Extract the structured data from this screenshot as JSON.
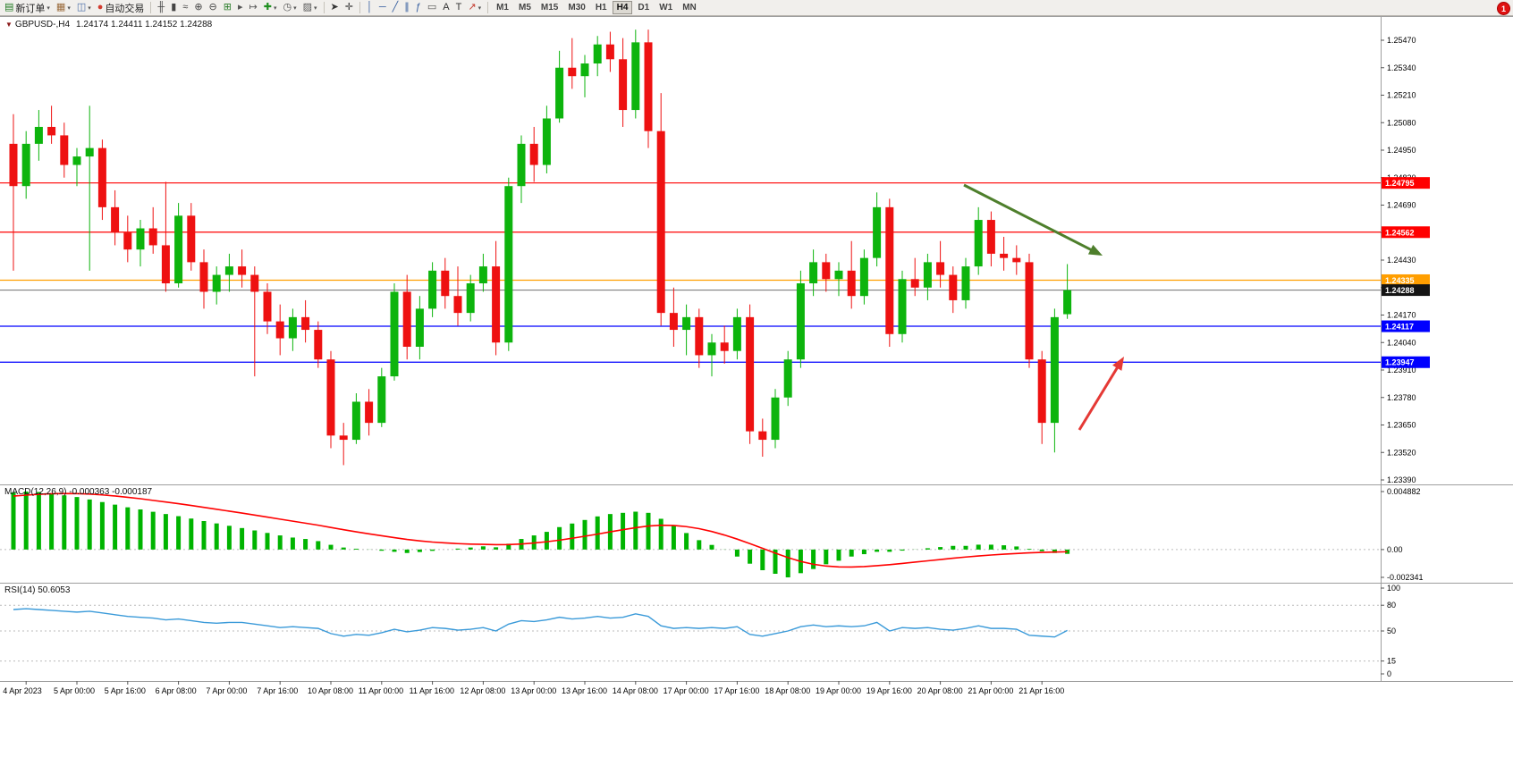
{
  "toolbar": {
    "buttons": [
      {
        "name": "new-order",
        "icon": "new-order-icon",
        "glyph": "▤",
        "label": "新订单",
        "dropdown": true,
        "color": "#1f7a1f"
      },
      {
        "name": "new-chart",
        "icon": "new-chart-icon",
        "glyph": "▦",
        "dropdown": true,
        "color": "#9a6a3a"
      },
      {
        "name": "profiles",
        "icon": "profiles-icon",
        "glyph": "◫",
        "dropdown": true,
        "color": "#4a6da7"
      },
      {
        "name": "auto-trading",
        "icon": "auto-trading-icon",
        "glyph": "●",
        "label": "自动交易",
        "color": "#d23b2f"
      },
      {
        "sep": true
      },
      {
        "name": "bar-chart",
        "icon": "bar-chart-icon",
        "glyph": "╫",
        "color": "#444"
      },
      {
        "name": "candlestick-chart",
        "icon": "candlestick-chart-icon",
        "glyph": "▮",
        "color": "#444"
      },
      {
        "name": "line-chart",
        "icon": "line-chart-icon",
        "glyph": "≈",
        "color": "#444"
      },
      {
        "name": "zoom-in",
        "icon": "zoom-in-icon",
        "glyph": "⊕",
        "color": "#444"
      },
      {
        "name": "zoom-out",
        "icon": "zoom-out-icon",
        "glyph": "⊖",
        "color": "#444"
      },
      {
        "name": "tile-windows",
        "icon": "tile-windows-icon",
        "glyph": "⊞",
        "color": "#2a7d2a"
      },
      {
        "name": "auto-scroll",
        "icon": "auto-scroll-icon",
        "glyph": "▸",
        "color": "#555"
      },
      {
        "name": "chart-shift",
        "icon": "chart-shift-icon",
        "glyph": "↦",
        "color": "#555"
      },
      {
        "name": "indicators",
        "icon": "indicators-icon",
        "glyph": "✚",
        "dropdown": true,
        "color": "#1f8f1f"
      },
      {
        "name": "periods",
        "icon": "clock-icon",
        "glyph": "◷",
        "dropdown": true,
        "color": "#555"
      },
      {
        "name": "templates",
        "icon": "template-icon",
        "glyph": "▨",
        "dropdown": true,
        "color": "#555"
      },
      {
        "sep": true
      },
      {
        "name": "cursor",
        "icon": "cursor-icon",
        "glyph": "➤",
        "color": "#333"
      },
      {
        "name": "crosshair",
        "icon": "crosshair-icon",
        "glyph": "✛",
        "color": "#333"
      },
      {
        "sep": true
      },
      {
        "name": "vertical-line",
        "icon": "vertical-line-icon",
        "glyph": "│",
        "color": "#335c9e"
      },
      {
        "name": "horizontal-line",
        "icon": "horizontal-line-icon",
        "glyph": "─",
        "color": "#335c9e"
      },
      {
        "name": "trendline",
        "icon": "trendline-icon",
        "glyph": "╱",
        "color": "#335c9e"
      },
      {
        "name": "channel",
        "icon": "channel-icon",
        "glyph": "∥",
        "color": "#335c9e"
      },
      {
        "name": "fibonacci",
        "icon": "fibonacci-icon",
        "glyph": "ƒ",
        "color": "#335c9e"
      },
      {
        "name": "shapes",
        "icon": "shapes-icon",
        "glyph": "▭",
        "color": "#555"
      },
      {
        "name": "text",
        "icon": "text-icon",
        "glyph": "A",
        "color": "#333"
      },
      {
        "name": "text-label",
        "icon": "text-label-icon",
        "glyph": "T",
        "color": "#333"
      },
      {
        "name": "arrow-objects",
        "icon": "arrow-objects-icon",
        "glyph": "↗",
        "dropdown": true,
        "color": "#c43b2f"
      },
      {
        "sep": true
      }
    ],
    "timeframes": [
      "M1",
      "M5",
      "M15",
      "M30",
      "H1",
      "H4",
      "D1",
      "W1",
      "MN"
    ],
    "active_timeframe": "H4",
    "alert_badge": "1"
  },
  "chart": {
    "title": "GBPUSD-,H4",
    "ohlc": "1.24174 1.24411 1.24152 1.24288"
  },
  "indicators": {
    "macd_label": "MACD(12,26,9) -0.000363 -0.000187",
    "rsi_label": "RSI(14) 50.6053"
  },
  "chart_data": {
    "type": "candlestick",
    "symbol": "GBPUSD-",
    "timeframe": "H4",
    "colors": {
      "up": "#0db40d",
      "down": "#ee1111",
      "macd_hist": "#00b400",
      "macd_signal": "#ff0000",
      "rsi": "#3a9ad9"
    },
    "y_axis": [
      "1.25470",
      "1.25340",
      "1.25210",
      "1.25080",
      "1.24950",
      "1.24820",
      "1.24690",
      "1.24560",
      "1.24430",
      "1.24300",
      "1.24170",
      "1.24040",
      "1.23910",
      "1.23780",
      "1.23650",
      "1.23520",
      "1.23390"
    ],
    "x_labels": [
      "4 Apr 2023",
      "5 Apr 00:00",
      "5 Apr 16:00",
      "6 Apr 08:00",
      "7 Apr 00:00",
      "7 Apr 16:00",
      "10 Apr 08:00",
      "11 Apr 00:00",
      "11 Apr 16:00",
      "12 Apr 08:00",
      "13 Apr 00:00",
      "13 Apr 16:00",
      "14 Apr 08:00",
      "17 Apr 00:00",
      "17 Apr 16:00",
      "18 Apr 08:00",
      "19 Apr 00:00",
      "19 Apr 16:00",
      "20 Apr 08:00",
      "21 Apr 00:00",
      "21 Apr 16:00"
    ],
    "candles": [
      [
        1.2498,
        1.2512,
        1.2438,
        1.2478
      ],
      [
        1.2478,
        1.2504,
        1.2472,
        1.2498
      ],
      [
        1.2498,
        1.2514,
        1.249,
        1.2506
      ],
      [
        1.2506,
        1.2516,
        1.2498,
        1.2502
      ],
      [
        1.2502,
        1.2508,
        1.2482,
        1.2488
      ],
      [
        1.2488,
        1.2496,
        1.2478,
        1.2492
      ],
      [
        1.2492,
        1.2516,
        1.2438,
        1.2496
      ],
      [
        1.2496,
        1.25,
        1.2462,
        1.2468
      ],
      [
        1.2468,
        1.2476,
        1.245,
        1.2456
      ],
      [
        1.2456,
        1.2464,
        1.2442,
        1.2448
      ],
      [
        1.2448,
        1.2462,
        1.244,
        1.2458
      ],
      [
        1.2458,
        1.2468,
        1.2446,
        1.245
      ],
      [
        1.245,
        1.248,
        1.2428,
        1.2432
      ],
      [
        1.2432,
        1.247,
        1.243,
        1.2464
      ],
      [
        1.2464,
        1.247,
        1.2438,
        1.2442
      ],
      [
        1.2442,
        1.2448,
        1.242,
        1.2428
      ],
      [
        1.2428,
        1.244,
        1.2422,
        1.2436
      ],
      [
        1.2436,
        1.2446,
        1.2428,
        1.244
      ],
      [
        1.244,
        1.2448,
        1.243,
        1.2436
      ],
      [
        1.2436,
        1.244,
        1.2388,
        1.2428
      ],
      [
        1.2428,
        1.2432,
        1.2408,
        1.2414
      ],
      [
        1.2414,
        1.2422,
        1.2398,
        1.2406
      ],
      [
        1.2406,
        1.242,
        1.24,
        1.2416
      ],
      [
        1.2416,
        1.2424,
        1.2404,
        1.241
      ],
      [
        1.241,
        1.2414,
        1.2392,
        1.2396
      ],
      [
        1.2396,
        1.24,
        1.2354,
        1.236
      ],
      [
        1.236,
        1.2366,
        1.2346,
        1.2358
      ],
      [
        1.2358,
        1.238,
        1.2356,
        1.2376
      ],
      [
        1.2376,
        1.2382,
        1.236,
        1.2366
      ],
      [
        1.2366,
        1.2392,
        1.2364,
        1.2388
      ],
      [
        1.2388,
        1.2432,
        1.2386,
        1.2428
      ],
      [
        1.2428,
        1.2436,
        1.2396,
        1.2402
      ],
      [
        1.2402,
        1.2426,
        1.2396,
        1.242
      ],
      [
        1.242,
        1.2442,
        1.2416,
        1.2438
      ],
      [
        1.2438,
        1.2444,
        1.242,
        1.2426
      ],
      [
        1.2426,
        1.244,
        1.2412,
        1.2418
      ],
      [
        1.2418,
        1.2436,
        1.2414,
        1.2432
      ],
      [
        1.2432,
        1.2446,
        1.2428,
        1.244
      ],
      [
        1.244,
        1.2452,
        1.2398,
        1.2404
      ],
      [
        1.2404,
        1.2482,
        1.24,
        1.2478
      ],
      [
        1.2478,
        1.2502,
        1.247,
        1.2498
      ],
      [
        1.2498,
        1.2506,
        1.248,
        1.2488
      ],
      [
        1.2488,
        1.2516,
        1.2484,
        1.251
      ],
      [
        1.251,
        1.2542,
        1.2508,
        1.2534
      ],
      [
        1.2534,
        1.2548,
        1.2524,
        1.253
      ],
      [
        1.253,
        1.254,
        1.252,
        1.2536
      ],
      [
        1.2536,
        1.2549,
        1.253,
        1.2545
      ],
      [
        1.2545,
        1.2551,
        1.2532,
        1.2538
      ],
      [
        1.2538,
        1.2548,
        1.2506,
        1.2514
      ],
      [
        1.2514,
        1.2552,
        1.251,
        1.2546
      ],
      [
        1.2546,
        1.2552,
        1.2496,
        1.2504
      ],
      [
        1.2504,
        1.2522,
        1.2412,
        1.2418
      ],
      [
        1.2418,
        1.243,
        1.2402,
        1.241
      ],
      [
        1.241,
        1.2422,
        1.2398,
        1.2416
      ],
      [
        1.2416,
        1.242,
        1.2392,
        1.2398
      ],
      [
        1.2398,
        1.2408,
        1.2388,
        1.2404
      ],
      [
        1.2404,
        1.2412,
        1.2394,
        1.24
      ],
      [
        1.24,
        1.242,
        1.2396,
        1.2416
      ],
      [
        1.2416,
        1.2422,
        1.2356,
        1.2362
      ],
      [
        1.2362,
        1.2368,
        1.235,
        1.2358
      ],
      [
        1.2358,
        1.2382,
        1.2354,
        1.2378
      ],
      [
        1.2378,
        1.24,
        1.2374,
        1.2396
      ],
      [
        1.2396,
        1.2438,
        1.2392,
        1.2432
      ],
      [
        1.2432,
        1.2448,
        1.2426,
        1.2442
      ],
      [
        1.2442,
        1.2446,
        1.2428,
        1.2434
      ],
      [
        1.2434,
        1.2442,
        1.2426,
        1.2438
      ],
      [
        1.2438,
        1.2452,
        1.242,
        1.2426
      ],
      [
        1.2426,
        1.2448,
        1.2422,
        1.2444
      ],
      [
        1.2444,
        1.2475,
        1.244,
        1.2468
      ],
      [
        1.2468,
        1.2472,
        1.2402,
        1.2408
      ],
      [
        1.2408,
        1.2438,
        1.2404,
        1.2434
      ],
      [
        1.2434,
        1.2444,
        1.2426,
        1.243
      ],
      [
        1.243,
        1.2446,
        1.2424,
        1.2442
      ],
      [
        1.2442,
        1.2452,
        1.243,
        1.2436
      ],
      [
        1.2436,
        1.244,
        1.2418,
        1.2424
      ],
      [
        1.2424,
        1.2444,
        1.242,
        1.244
      ],
      [
        1.244,
        1.2468,
        1.2436,
        1.2462
      ],
      [
        1.2462,
        1.2466,
        1.244,
        1.2446
      ],
      [
        1.2446,
        1.2454,
        1.2438,
        1.2444
      ],
      [
        1.2444,
        1.245,
        1.2436,
        1.2442
      ],
      [
        1.2442,
        1.2446,
        1.2392,
        1.2396
      ],
      [
        1.2396,
        1.24,
        1.2356,
        1.2366
      ],
      [
        1.2366,
        1.242,
        1.2352,
        1.2416
      ],
      [
        1.24174,
        1.24411,
        1.24152,
        1.24288
      ]
    ],
    "hlines": [
      {
        "price": 1.24795,
        "label": "1.24795",
        "color": "#ff0000"
      },
      {
        "price": 1.24562,
        "label": "1.24562",
        "color": "#ff0000"
      },
      {
        "price": 1.24335,
        "label": "1.24335",
        "color": "#ff9e00"
      },
      {
        "price": 1.24117,
        "label": "1.24117",
        "color": "#0000ff"
      },
      {
        "price": 1.23947,
        "label": "1.23947",
        "color": "#0000ff"
      }
    ],
    "current_price": {
      "value": 1.24288,
      "label": "1.24288",
      "badge_color": "#141414",
      "line_color": "#6f6f6f"
    },
    "objects": [
      {
        "name": "green-trend-arrow",
        "from": [
          1078,
          207
        ],
        "to": [
          1233,
          286
        ],
        "color": "#4e7f2c",
        "width": 3
      },
      {
        "name": "red-signal-arrow",
        "from": [
          1207,
          481
        ],
        "to": [
          1257,
          399
        ],
        "color": "#e53935",
        "width": 3
      }
    ],
    "macd": {
      "params": "12,26,9",
      "value": -0.000363,
      "signal_value": -0.000187,
      "axis_labels": [
        {
          "v": 0.004882,
          "t": "0.004882"
        },
        {
          "v": 0,
          "t": "0.00"
        },
        {
          "v": -0.002341,
          "t": "-0.002341"
        }
      ],
      "histogram": [
        0.0048,
        0.00488,
        0.00484,
        0.0047,
        0.00456,
        0.00442,
        0.00421,
        0.004,
        0.00378,
        0.00356,
        0.00338,
        0.00318,
        0.00299,
        0.00281,
        0.00261,
        0.0024,
        0.0022,
        0.002,
        0.00181,
        0.00161,
        0.0014,
        0.00119,
        0.00101,
        0.00089,
        0.00071,
        0.0004,
        0.00017,
        7e-05,
        -1e-05,
        -0.0001,
        -0.00019,
        -0.00029,
        -0.00021,
        -0.00011,
        0,
        8e-05,
        0.00017,
        0.00027,
        0.00019,
        0.00049,
        0.00089,
        0.00119,
        0.00149,
        0.00189,
        0.00219,
        0.00249,
        0.00279,
        0.00299,
        0.00309,
        0.00319,
        0.00309,
        0.00259,
        0.00199,
        0.00139,
        0.00079,
        0.00039,
        -1e-05,
        -0.00059,
        -0.00119,
        -0.00174,
        -0.00204,
        -0.00234,
        -0.00199,
        -0.00164,
        -0.00124,
        -0.00094,
        -0.00059,
        -0.00039,
        -0.00019,
        -0.00019,
        -9e-05,
        1e-05,
        0.00011,
        0.00021,
        0.00031,
        0.00031,
        0.00041,
        0.00041,
        0.00036,
        0.00026,
        6e-05,
        -0.00014,
        -0.00029,
        -0.000363
      ],
      "signal": [
        0.0045,
        0.00458,
        0.00465,
        0.0047,
        0.00472,
        0.00471,
        0.00467,
        0.0046,
        0.00451,
        0.0044,
        0.00428,
        0.00414,
        0.004,
        0.00386,
        0.00371,
        0.00355,
        0.00339,
        0.00323,
        0.00307,
        0.0029,
        0.00273,
        0.00256,
        0.00239,
        0.00222,
        0.00205,
        0.00186,
        0.00167,
        0.00149,
        0.00132,
        0.00116,
        0.001,
        0.00085,
        0.00073,
        0.00063,
        0.00056,
        0.0005,
        0.00046,
        0.00044,
        0.00041,
        0.00042,
        0.00047,
        0.00055,
        0.00066,
        0.00079,
        0.00095,
        0.00112,
        0.0013,
        0.00149,
        0.00167,
        0.00184,
        0.00198,
        0.00205,
        0.00203,
        0.00193,
        0.00176,
        0.00152,
        0.00122,
        0.00088,
        0.0005,
        0.0001,
        -0.0003,
        -0.00068,
        -0.001,
        -0.00124,
        -0.00139,
        -0.00146,
        -0.00147,
        -0.00143,
        -0.00136,
        -0.00127,
        -0.00117,
        -0.00106,
        -0.00095,
        -0.00084,
        -0.00073,
        -0.00063,
        -0.00054,
        -0.00046,
        -0.00039,
        -0.00033,
        -0.00028,
        -0.00024,
        -0.00021,
        -0.000187
      ]
    },
    "rsi": {
      "period": 14,
      "value": 50.6053,
      "levels": [
        80,
        50,
        15
      ],
      "axis_labels": [
        {
          "v": 100,
          "t": "100"
        },
        {
          "v": 80,
          "t": "80"
        },
        {
          "v": 50,
          "t": "50"
        },
        {
          "v": 15,
          "t": "15"
        },
        {
          "v": 0,
          "t": "0"
        }
      ],
      "values": [
        75,
        76,
        75,
        74,
        73,
        72,
        73,
        71,
        69,
        67,
        66,
        65,
        63,
        64,
        62,
        60,
        59,
        60,
        60,
        58,
        56,
        54,
        55,
        54,
        53,
        47,
        44,
        46,
        45,
        48,
        52,
        49,
        51,
        54,
        53,
        51,
        52,
        54,
        50,
        58,
        62,
        61,
        63,
        66,
        64,
        65,
        67,
        65,
        66,
        70,
        67,
        56,
        53,
        54,
        53,
        54,
        53,
        55,
        46,
        44,
        47,
        50,
        55,
        57,
        55,
        56,
        55,
        56,
        60,
        50,
        54,
        53,
        54,
        52,
        51,
        53,
        56,
        53,
        53,
        52,
        45,
        44,
        43,
        50.6053
      ]
    }
  }
}
